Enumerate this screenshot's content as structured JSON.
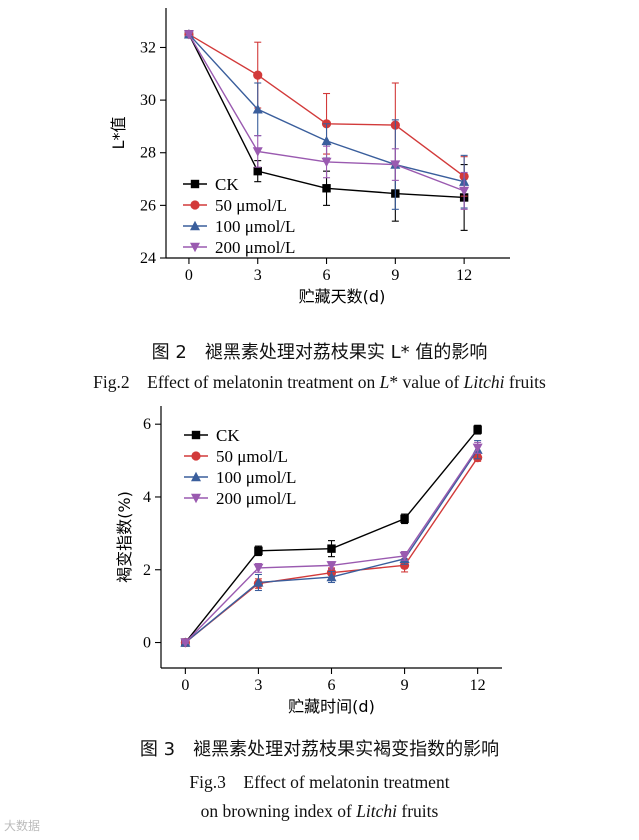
{
  "chart_data": [
    {
      "type": "line",
      "xlabel": "贮藏天数(d)",
      "ylabel": "L*值",
      "x": [
        0,
        3,
        6,
        9,
        12
      ],
      "xlim": [
        -1,
        14
      ],
      "ylim": [
        24,
        33.5
      ],
      "xticks": [
        0,
        3,
        6,
        9,
        12
      ],
      "yticks": [
        24,
        26,
        28,
        30,
        32
      ],
      "grid": false,
      "legend_position": "bottom-left",
      "series": [
        {
          "name": "CK",
          "color": "#000000",
          "marker": "square",
          "values": [
            32.5,
            27.3,
            26.65,
            26.45,
            26.3
          ],
          "errors": [
            0.05,
            0.4,
            0.65,
            1.05,
            1.25
          ]
        },
        {
          "name": "50 μmol/L",
          "color": "#d23a3a",
          "marker": "circle",
          "values": [
            32.5,
            30.95,
            29.1,
            29.05,
            27.1
          ],
          "errors": [
            0.05,
            1.25,
            1.15,
            1.6,
            0.75
          ]
        },
        {
          "name": "100 μmol/L",
          "color": "#3a5e9c",
          "marker": "triangle-up",
          "values": [
            32.5,
            29.65,
            28.45,
            27.55,
            26.9
          ],
          "errors": [
            0.05,
            1.0,
            0.65,
            1.7,
            1.0
          ]
        },
        {
          "name": "200 μmol/L",
          "color": "#9a5ab0",
          "marker": "triangle-down",
          "values": [
            32.5,
            28.05,
            27.65,
            27.55,
            26.55
          ],
          "errors": [
            0.05,
            0.6,
            0.6,
            0.6,
            0.7
          ]
        }
      ]
    },
    {
      "type": "line",
      "xlabel": "贮藏时间(d)",
      "ylabel": "褐变指数(%)",
      "x": [
        0,
        3,
        6,
        9,
        12
      ],
      "xlim": [
        -1,
        13
      ],
      "ylim": [
        -0.7,
        6.5
      ],
      "xticks": [
        0,
        3,
        6,
        9,
        12
      ],
      "yticks": [
        0,
        2,
        4,
        6
      ],
      "grid": false,
      "legend_position": "top-left",
      "series": [
        {
          "name": "CK",
          "color": "#000000",
          "marker": "square",
          "values": [
            0,
            2.52,
            2.58,
            3.4,
            5.85
          ],
          "errors": [
            0.02,
            0.13,
            0.22,
            0.13,
            0.12
          ]
        },
        {
          "name": "50 μmol/L",
          "color": "#d23a3a",
          "marker": "circle",
          "values": [
            0,
            1.62,
            1.92,
            2.12,
            5.08
          ],
          "errors": [
            0.02,
            0.13,
            0.13,
            0.18,
            0.1
          ]
        },
        {
          "name": "100 μmol/L",
          "color": "#3a5e9c",
          "marker": "triangle-up",
          "values": [
            0,
            1.65,
            1.8,
            2.3,
            5.3
          ],
          "errors": [
            0.02,
            0.22,
            0.15,
            0.15,
            0.25
          ]
        },
        {
          "name": "200 μmol/L",
          "color": "#9a5ab0",
          "marker": "triangle-down",
          "values": [
            0,
            2.05,
            2.12,
            2.38,
            5.35
          ],
          "errors": [
            0.02,
            0.12,
            0.1,
            0.12,
            0.15
          ]
        }
      ]
    }
  ],
  "captions": {
    "fig2_cn": "图 2　褪黑素处理对荔枝果实 L* 值的影响",
    "fig2_en_pre": "Fig.2　Effect of melatonin treatment on ",
    "fig2_en_L": "L",
    "fig2_en_mid": "* value of ",
    "fig2_en_litchi": "Litchi",
    "fig2_en_post": " fruits",
    "fig3_cn": "图 3　褪黑素处理对荔枝果实褐变指数的影响",
    "fig3_en_line1": "Fig.3　Effect of melatonin treatment",
    "fig3_en_pre": "on browning index of ",
    "fig3_en_litchi": "Litchi",
    "fig3_en_post": " fruits"
  },
  "watermark": "大数据"
}
